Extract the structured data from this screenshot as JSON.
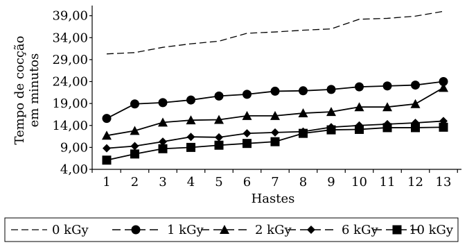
{
  "chart_data": {
    "type": "line",
    "xlabel": "Hastes",
    "ylabel_line1": "Tempo de cocção",
    "ylabel_line2": "em minutos",
    "x": [
      1,
      2,
      3,
      4,
      5,
      6,
      7,
      8,
      9,
      10,
      11,
      12,
      13
    ],
    "x_tick_labels": [
      "1",
      "2",
      "3",
      "4",
      "5",
      "6",
      "7",
      "8",
      "9",
      "10",
      "11",
      "12",
      "13"
    ],
    "ylim": [
      4,
      41
    ],
    "y_ticks": [
      4,
      9,
      14,
      19,
      24,
      29,
      34,
      39
    ],
    "y_tick_labels": [
      "4,00",
      "9,00",
      "14,00",
      "19,00",
      "24,00",
      "29,00",
      "34,00",
      "39,00"
    ],
    "grid": false,
    "legend_position": "bottom",
    "series": [
      {
        "name": "0 kGy",
        "marker": "none",
        "color": "#000000",
        "values": [
          30.3,
          30.6,
          31.8,
          32.6,
          33.2,
          35.0,
          35.3,
          35.7,
          36.0,
          38.2,
          38.4,
          38.9,
          40.0
        ]
      },
      {
        "name": "1 kGy",
        "marker": "circle",
        "color": "#000000",
        "values": [
          15.6,
          18.9,
          19.2,
          19.8,
          20.7,
          21.1,
          21.8,
          21.9,
          22.2,
          22.8,
          23.0,
          23.2,
          24.0
        ]
      },
      {
        "name": "2 kGy",
        "marker": "triangle",
        "color": "#000000",
        "values": [
          11.7,
          12.8,
          14.7,
          15.2,
          15.3,
          16.2,
          16.2,
          16.8,
          17.1,
          18.2,
          18.2,
          18.9,
          22.6
        ]
      },
      {
        "name": "6 kGy",
        "marker": "diamond",
        "color": "#000000",
        "values": [
          8.8,
          9.3,
          10.3,
          11.4,
          11.3,
          12.2,
          12.4,
          12.6,
          13.6,
          14.0,
          14.3,
          14.6,
          15.0
        ]
      },
      {
        "name": "10 kGy",
        "marker": "square",
        "color": "#000000",
        "values": [
          6.1,
          7.5,
          8.7,
          9.0,
          9.5,
          9.9,
          10.3,
          12.2,
          13.0,
          13.1,
          13.5,
          13.5,
          13.6
        ]
      }
    ]
  }
}
